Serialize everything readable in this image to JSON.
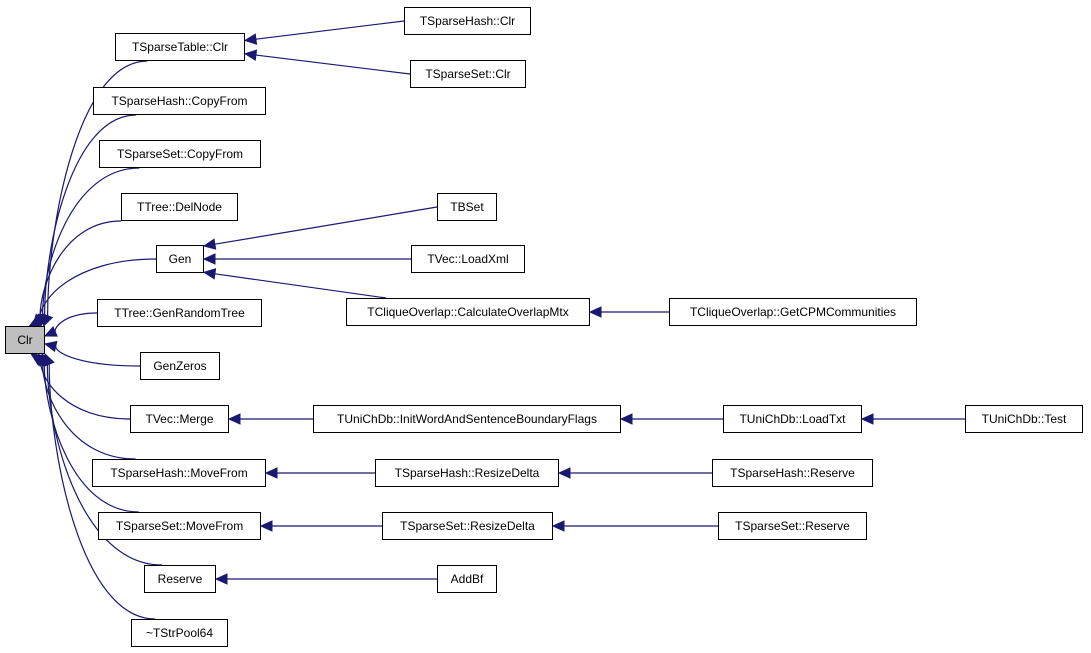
{
  "colors": {
    "edge": "#191970",
    "root_fill": "#bfbfbf",
    "node_fill": "#ffffff"
  },
  "nodes": [
    {
      "id": "clr",
      "label": "Clr",
      "root": true
    },
    {
      "id": "tsparsetable_clr",
      "label": "TSparseTable::Clr"
    },
    {
      "id": "tsparsehash_copyfrom",
      "label": "TSparseHash::CopyFrom"
    },
    {
      "id": "tsparseset_copyfrom",
      "label": "TSparseSet::CopyFrom"
    },
    {
      "id": "ttree_delnode",
      "label": "TTree::DelNode"
    },
    {
      "id": "gen",
      "label": "Gen"
    },
    {
      "id": "ttree_genrandomtree",
      "label": "TTree::GenRandomTree"
    },
    {
      "id": "genzeros",
      "label": "GenZeros"
    },
    {
      "id": "tvec_merge",
      "label": "TVec::Merge"
    },
    {
      "id": "tsparsehash_movefrom",
      "label": "TSparseHash::MoveFrom"
    },
    {
      "id": "tsparseset_movefrom",
      "label": "TSparseSet::MoveFrom"
    },
    {
      "id": "reserve",
      "label": "Reserve"
    },
    {
      "id": "tstrpool64_dtor",
      "label": "~TStrPool64"
    },
    {
      "id": "tsparsehash_clr",
      "label": "TSparseHash::Clr"
    },
    {
      "id": "tsparseset_clr",
      "label": "TSparseSet::Clr"
    },
    {
      "id": "tbset",
      "label": "TBSet"
    },
    {
      "id": "tvec_loadxml",
      "label": "TVec::LoadXml"
    },
    {
      "id": "tcliqueoverlap_calc",
      "label": "TCliqueOverlap::CalculateOverlapMtx"
    },
    {
      "id": "tcliqueoverlap_getcpm",
      "label": "TCliqueOverlap::GetCPMCommunities"
    },
    {
      "id": "tunichdb_initword",
      "label": "TUniChDb::InitWordAndSentenceBoundaryFlags"
    },
    {
      "id": "tunichdb_loadtxt",
      "label": "TUniChDb::LoadTxt"
    },
    {
      "id": "tunichdb_test",
      "label": "TUniChDb::Test"
    },
    {
      "id": "tsparsehash_resizedelta",
      "label": "TSparseHash::ResizeDelta"
    },
    {
      "id": "tsparsehash_reserve",
      "label": "TSparseHash::Reserve"
    },
    {
      "id": "tsparseset_resizedelta",
      "label": "TSparseSet::ResizeDelta"
    },
    {
      "id": "tsparseset_reserve",
      "label": "TSparseSet::Reserve"
    },
    {
      "id": "addbf",
      "label": "AddBf"
    }
  ],
  "edges": [
    {
      "from": "tsparsetable_clr",
      "to": "clr"
    },
    {
      "from": "tsparsehash_copyfrom",
      "to": "clr"
    },
    {
      "from": "tsparseset_copyfrom",
      "to": "clr"
    },
    {
      "from": "ttree_delnode",
      "to": "clr"
    },
    {
      "from": "gen",
      "to": "clr"
    },
    {
      "from": "ttree_genrandomtree",
      "to": "clr"
    },
    {
      "from": "genzeros",
      "to": "clr"
    },
    {
      "from": "tvec_merge",
      "to": "clr"
    },
    {
      "from": "tsparsehash_movefrom",
      "to": "clr"
    },
    {
      "from": "tsparseset_movefrom",
      "to": "clr"
    },
    {
      "from": "reserve",
      "to": "clr"
    },
    {
      "from": "tstrpool64_dtor",
      "to": "clr"
    },
    {
      "from": "tsparsehash_clr",
      "to": "tsparsetable_clr"
    },
    {
      "from": "tsparseset_clr",
      "to": "tsparsetable_clr"
    },
    {
      "from": "tbset",
      "to": "gen"
    },
    {
      "from": "tvec_loadxml",
      "to": "gen"
    },
    {
      "from": "tcliqueoverlap_calc",
      "to": "gen"
    },
    {
      "from": "tcliqueoverlap_getcpm",
      "to": "tcliqueoverlap_calc"
    },
    {
      "from": "tunichdb_initword",
      "to": "tvec_merge"
    },
    {
      "from": "tunichdb_loadtxt",
      "to": "tunichdb_initword"
    },
    {
      "from": "tunichdb_test",
      "to": "tunichdb_loadtxt"
    },
    {
      "from": "tsparsehash_resizedelta",
      "to": "tsparsehash_movefrom"
    },
    {
      "from": "tsparsehash_reserve",
      "to": "tsparsehash_resizedelta"
    },
    {
      "from": "tsparseset_resizedelta",
      "to": "tsparseset_movefrom"
    },
    {
      "from": "tsparseset_reserve",
      "to": "tsparseset_resizedelta"
    },
    {
      "from": "addbf",
      "to": "reserve"
    }
  ]
}
